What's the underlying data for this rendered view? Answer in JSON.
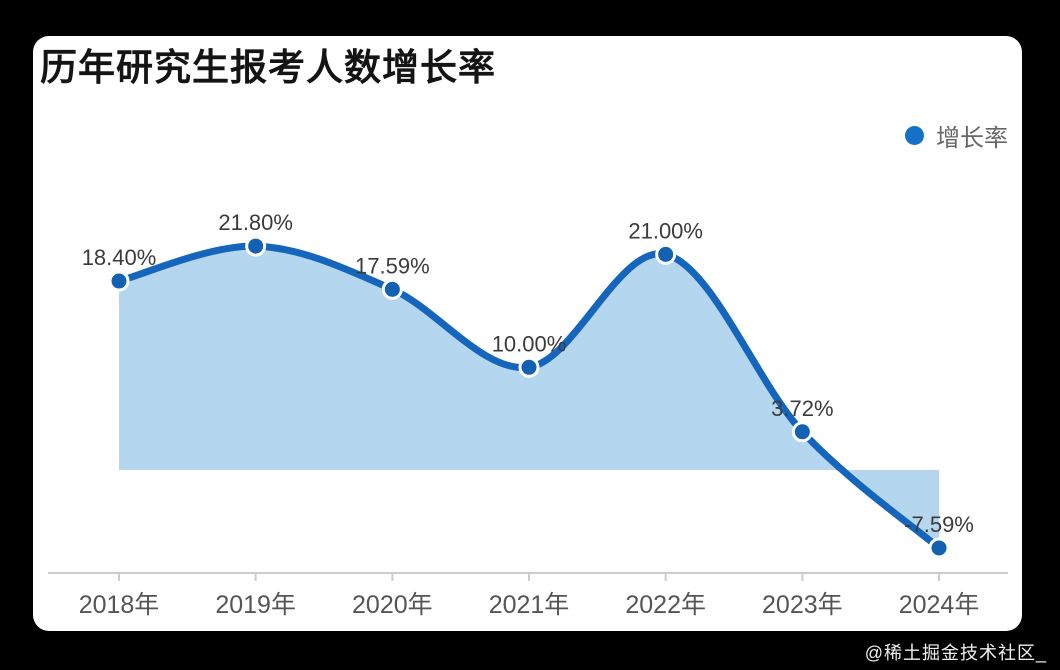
{
  "page": {
    "background": "#000000",
    "card_background": "#ffffff",
    "watermark": "@稀土掘金技术社区_",
    "watermark_color": "#f0f0f0"
  },
  "chart_data": {
    "type": "area",
    "title": "历年研究生报考人数增长率",
    "legend": {
      "label": "增长率",
      "position": "top-right"
    },
    "categories": [
      "2018年",
      "2019年",
      "2020年",
      "2021年",
      "2022年",
      "2023年",
      "2024年"
    ],
    "series": [
      {
        "name": "增长率",
        "values": [
          18.4,
          21.8,
          17.59,
          10.0,
          21.0,
          3.72,
          -7.59
        ]
      }
    ],
    "point_labels": [
      "18.40%",
      "21.80%",
      "17.59%",
      "10.00%",
      "21.00%",
      "3.72%",
      "-7.59%"
    ],
    "xlabel": "",
    "ylabel": "",
    "ylim": [
      -10,
      25
    ],
    "grid": false,
    "smooth": true,
    "y_axis_visible": false,
    "colors": {
      "line": "#1565bd",
      "point": "#1261b2",
      "point_border": "#ffffff",
      "area": "#b4d7ef",
      "axis": "#cccccc",
      "point_label": "#3b3b3b",
      "axis_label": "#555555",
      "legend_dot": "#1372c8",
      "legend_text": "#666666",
      "title": "#141414"
    }
  }
}
